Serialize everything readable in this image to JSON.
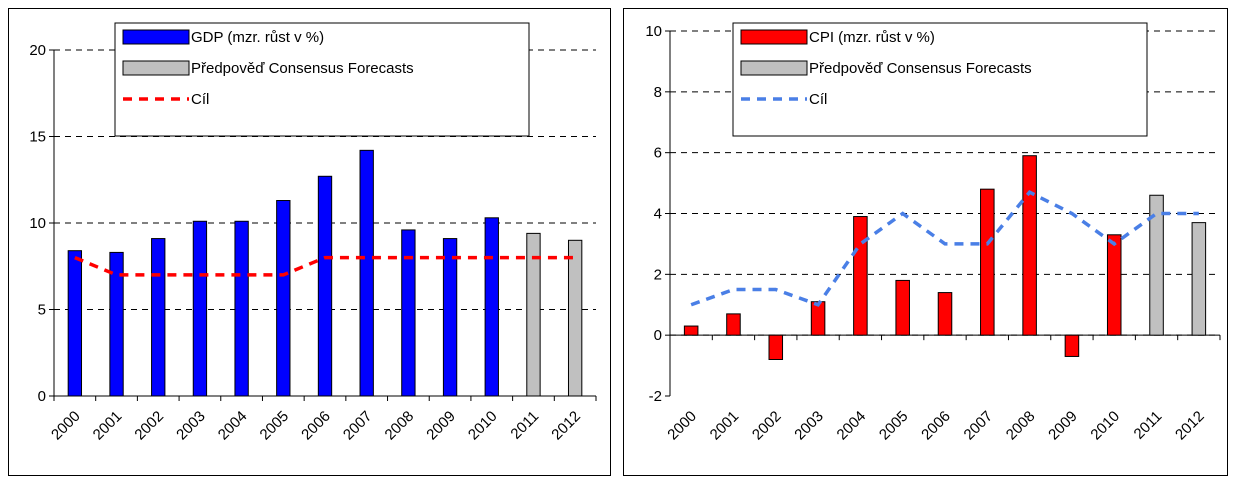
{
  "chart_data": [
    {
      "type": "bar",
      "categories": [
        "2000",
        "2001",
        "2002",
        "2003",
        "2004",
        "2005",
        "2006",
        "2007",
        "2008",
        "2009",
        "2010",
        "2011",
        "2012"
      ],
      "ylim": [
        0,
        20
      ],
      "yticks": [
        "0",
        "5",
        "10",
        "15",
        "20"
      ],
      "grid": "dashed horizontal",
      "legend_position": "top",
      "series": [
        {
          "name": "GDP (mzr. růst v %)",
          "type": "bar",
          "color": "#0000ff",
          "values": [
            8.4,
            8.3,
            9.1,
            10.1,
            10.1,
            11.3,
            12.7,
            14.2,
            9.6,
            9.1,
            10.3,
            null,
            null
          ]
        },
        {
          "name": "Předpověď Consensus Forecasts",
          "type": "bar",
          "color": "#c0c0c0",
          "values": [
            null,
            null,
            null,
            null,
            null,
            null,
            null,
            null,
            null,
            null,
            null,
            9.4,
            9.0
          ]
        },
        {
          "name": "Cíl",
          "type": "line",
          "style": "dashed",
          "color": "#ff0000",
          "values": [
            8.0,
            7.0,
            7.0,
            7.0,
            7.0,
            7.0,
            8.0,
            8.0,
            8.0,
            8.0,
            8.0,
            8.0,
            8.0
          ]
        }
      ]
    },
    {
      "type": "bar",
      "categories": [
        "2000",
        "2001",
        "2002",
        "2003",
        "2004",
        "2005",
        "2006",
        "2007",
        "2008",
        "2009",
        "2010",
        "2011",
        "2012"
      ],
      "ylim": [
        -2,
        10
      ],
      "yticks": [
        "-2",
        "0",
        "2",
        "4",
        "6",
        "8",
        "10"
      ],
      "grid": "dashed horizontal",
      "legend_position": "top",
      "series": [
        {
          "name": "CPI (mzr. růst v %)",
          "type": "bar",
          "color": "#ff0000",
          "values": [
            0.3,
            0.7,
            -0.8,
            1.1,
            3.9,
            1.8,
            1.4,
            4.8,
            5.9,
            -0.7,
            3.3,
            null,
            null
          ]
        },
        {
          "name": "Předpověď Consensus Forecasts",
          "type": "bar",
          "color": "#c0c0c0",
          "values": [
            null,
            null,
            null,
            null,
            null,
            null,
            null,
            null,
            null,
            null,
            null,
            4.6,
            3.7
          ]
        },
        {
          "name": "Cíl",
          "type": "line",
          "style": "dashed",
          "color": "#4a7fe6",
          "values": [
            1.0,
            1.5,
            1.5,
            1.0,
            3.0,
            4.0,
            3.0,
            3.0,
            4.7,
            4.0,
            3.0,
            4.0,
            4.0
          ]
        }
      ]
    }
  ]
}
